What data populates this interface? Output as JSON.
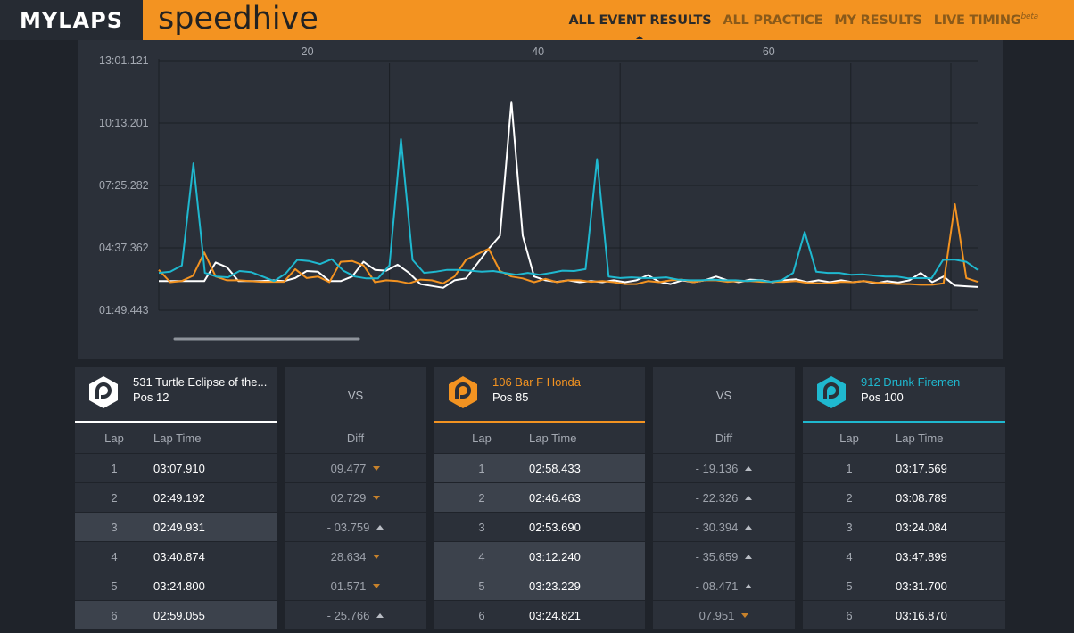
{
  "header": {
    "logo": "MYLAPS",
    "brand": "speedhive",
    "nav": [
      {
        "label": "ALL EVENT RESULTS",
        "active": true
      },
      {
        "label": "ALL PRACTICE",
        "active": false
      },
      {
        "label": "MY RESULTS",
        "active": false
      },
      {
        "label": "LIVE TIMING",
        "active": false,
        "sup": "beta"
      }
    ]
  },
  "chart_data": {
    "type": "line",
    "x_tick_labels": [
      "20",
      "40",
      "60"
    ],
    "x_ticks": [
      20,
      40,
      60
    ],
    "xlim": [
      0,
      71
    ],
    "y_tick_labels": [
      "13:01.121",
      "10:13.201",
      "07:25.282",
      "04:37.362",
      "01:49.443"
    ],
    "y_ticks_seconds": [
      781.121,
      613.201,
      445.282,
      277.362,
      109.443
    ],
    "ylim_seconds": [
      109.443,
      781.121
    ],
    "series": [
      {
        "color": "#ffffff",
        "values": [
          188,
          188,
          188,
          188,
          188,
          238,
          225,
          188,
          188,
          188,
          190,
          188,
          196,
          215,
          213,
          188,
          188,
          200,
          240,
          218,
          216,
          232,
          210,
          180,
          175,
          170,
          190,
          195,
          235,
          275,
          310,
          670,
          310,
          200,
          190,
          186,
          190,
          185,
          188,
          185,
          190,
          185,
          190,
          204,
          186,
          180,
          190,
          185,
          190,
          200,
          190,
          185,
          192,
          190,
          185,
          190,
          193,
          185,
          190,
          185,
          190,
          185,
          188,
          182,
          188,
          184,
          190,
          210,
          185,
          200,
          176,
          174,
          172
        ]
      },
      {
        "color": "#f39321",
        "values": [
          218,
          185,
          188,
          202,
          265,
          200,
          190,
          190,
          188,
          186,
          186,
          186,
          220,
          196,
          200,
          185,
          240,
          242,
          230,
          185,
          190,
          188,
          182,
          192,
          190,
          182,
          200,
          245,
          260,
          275,
          215,
          200,
          195,
          185,
          194,
          185,
          190,
          190,
          186,
          188,
          185,
          180,
          180,
          188,
          185,
          190,
          192,
          185,
          190,
          190,
          186,
          188,
          188,
          186,
          186,
          186,
          188,
          183,
          182,
          182,
          186,
          185,
          188,
          184,
          182,
          180,
          180,
          178,
          178,
          182,
          395,
          196,
          186
        ]
      },
      {
        "color": "#1fb8cf",
        "values": [
          210,
          213,
          230,
          505,
          210,
          200,
          198,
          215,
          212,
          200,
          188,
          208,
          245,
          242,
          234,
          247,
          216,
          200,
          195,
          195,
          230,
          570,
          245,
          210,
          213,
          218,
          218,
          216,
          213,
          215,
          210,
          205,
          210,
          205,
          210,
          216,
          215,
          220,
          516,
          200,
          196,
          198,
          196,
          196,
          198,
          192,
          190,
          190,
          192,
          190,
          190,
          188,
          190,
          186,
          190,
          210,
          320,
          213,
          210,
          210,
          205,
          206,
          203,
          200,
          200,
          195,
          196,
          195,
          245,
          246,
          240,
          218
        ]
      }
    ]
  },
  "driver1": {
    "name": "531 Turtle Eclipse of the...",
    "pos": "Pos 12",
    "color": "#ffffff",
    "lap_header": "Lap",
    "time_header": "Lap Time",
    "laps": [
      {
        "lap": "1",
        "time": "03:07.910",
        "hl": false
      },
      {
        "lap": "2",
        "time": "02:49.192",
        "hl": false
      },
      {
        "lap": "3",
        "time": "02:49.931",
        "hl": true
      },
      {
        "lap": "4",
        "time": "03:40.874",
        "hl": false
      },
      {
        "lap": "5",
        "time": "03:24.800",
        "hl": false
      },
      {
        "lap": "6",
        "time": "02:59.055",
        "hl": true
      }
    ]
  },
  "vs1": {
    "label": "VS",
    "diff_header": "Diff",
    "diffs": [
      {
        "value": "09.477",
        "dir": "down"
      },
      {
        "value": "02.729",
        "dir": "down"
      },
      {
        "value": "- 03.759",
        "dir": "up"
      },
      {
        "value": "28.634",
        "dir": "down"
      },
      {
        "value": "01.571",
        "dir": "down"
      },
      {
        "value": "- 25.766",
        "dir": "up"
      }
    ]
  },
  "driver2": {
    "name": "106 Bar F Honda",
    "pos": "Pos 85",
    "color": "#f39321",
    "lap_header": "Lap",
    "time_header": "Lap Time",
    "laps": [
      {
        "lap": "1",
        "time": "02:58.433",
        "hl": true
      },
      {
        "lap": "2",
        "time": "02:46.463",
        "hl": true
      },
      {
        "lap": "3",
        "time": "02:53.690",
        "hl": false
      },
      {
        "lap": "4",
        "time": "03:12.240",
        "hl": true
      },
      {
        "lap": "5",
        "time": "03:23.229",
        "hl": true
      },
      {
        "lap": "6",
        "time": "03:24.821",
        "hl": false
      }
    ]
  },
  "vs2": {
    "label": "VS",
    "diff_header": "Diff",
    "diffs": [
      {
        "value": "- 19.136",
        "dir": "up"
      },
      {
        "value": "- 22.326",
        "dir": "up"
      },
      {
        "value": "- 30.394",
        "dir": "up"
      },
      {
        "value": "- 35.659",
        "dir": "up"
      },
      {
        "value": "- 08.471",
        "dir": "up"
      },
      {
        "value": "07.951",
        "dir": "down"
      }
    ]
  },
  "driver3": {
    "name": "912 Drunk Firemen",
    "pos": "Pos 100",
    "color": "#1fb8cf",
    "lap_header": "Lap",
    "time_header": "Lap Time",
    "laps": [
      {
        "lap": "1",
        "time": "03:17.569",
        "hl": false
      },
      {
        "lap": "2",
        "time": "03:08.789",
        "hl": false
      },
      {
        "lap": "3",
        "time": "03:24.084",
        "hl": false
      },
      {
        "lap": "4",
        "time": "03:47.899",
        "hl": false
      },
      {
        "lap": "5",
        "time": "03:31.700",
        "hl": false
      },
      {
        "lap": "6",
        "time": "03:16.870",
        "hl": false
      }
    ]
  }
}
